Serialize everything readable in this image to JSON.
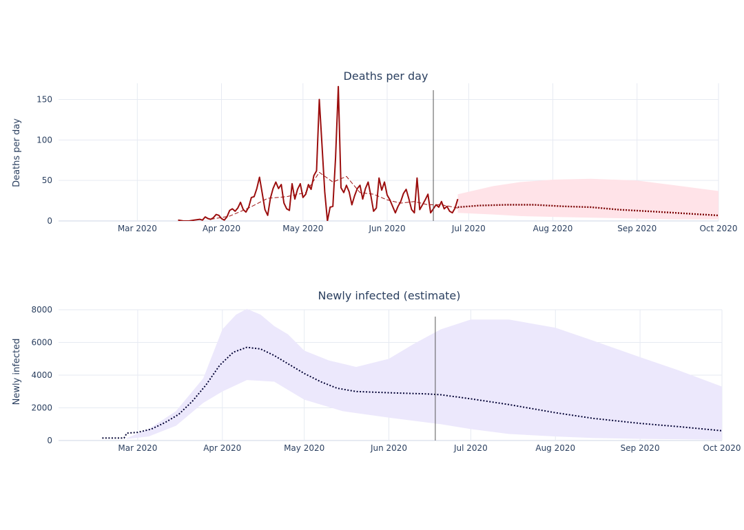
{
  "chart_data": [
    {
      "type": "line",
      "title": "Deaths per day",
      "ylabel": "Deaths per day",
      "xlabel": "",
      "x_range": [
        "2020-02-01",
        "2020-10-01"
      ],
      "ylim": [
        0,
        170
      ],
      "x_ticks": [
        {
          "date": "2020-03-01",
          "label": "Mar 2020"
        },
        {
          "date": "2020-04-01",
          "label": "Apr 2020"
        },
        {
          "date": "2020-05-01",
          "label": "May 2020"
        },
        {
          "date": "2020-06-01",
          "label": "Jun 2020"
        },
        {
          "date": "2020-07-01",
          "label": "Jul 2020"
        },
        {
          "date": "2020-08-01",
          "label": "Aug 2020"
        },
        {
          "date": "2020-09-01",
          "label": "Sep 2020"
        },
        {
          "date": "2020-10-01",
          "label": "Oct 2020"
        }
      ],
      "y_ticks": [
        0,
        50,
        100,
        150
      ],
      "grid": true,
      "today_marker": "2020-06-18",
      "colors": {
        "observed": "#9b0d0d",
        "smoothed": "#9b0d0d",
        "forecast": "#7a0000",
        "band": "#ffe3e8"
      },
      "series": [
        {
          "style": "observed",
          "points": [
            [
              "2020-03-16",
              1
            ],
            [
              "2020-03-18",
              0
            ],
            [
              "2020-03-20",
              0
            ],
            [
              "2020-03-22",
              1
            ],
            [
              "2020-03-24",
              2
            ],
            [
              "2020-03-25",
              1
            ],
            [
              "2020-03-26",
              5
            ],
            [
              "2020-03-27",
              3
            ],
            [
              "2020-03-28",
              2
            ],
            [
              "2020-03-29",
              4
            ],
            [
              "2020-03-30",
              8
            ],
            [
              "2020-03-31",
              7
            ],
            [
              "2020-04-01",
              3
            ],
            [
              "2020-04-02",
              1
            ],
            [
              "2020-04-03",
              5
            ],
            [
              "2020-04-04",
              13
            ],
            [
              "2020-04-05",
              15
            ],
            [
              "2020-04-06",
              12
            ],
            [
              "2020-04-07",
              16
            ],
            [
              "2020-04-08",
              23
            ],
            [
              "2020-04-09",
              14
            ],
            [
              "2020-04-10",
              11
            ],
            [
              "2020-04-11",
              17
            ],
            [
              "2020-04-12",
              29
            ],
            [
              "2020-04-13",
              30
            ],
            [
              "2020-04-14",
              40
            ],
            [
              "2020-04-15",
              54
            ],
            [
              "2020-04-16",
              34
            ],
            [
              "2020-04-17",
              14
            ],
            [
              "2020-04-18",
              7
            ],
            [
              "2020-04-19",
              28
            ],
            [
              "2020-04-20",
              40
            ],
            [
              "2020-04-21",
              48
            ],
            [
              "2020-04-22",
              40
            ],
            [
              "2020-04-23",
              45
            ],
            [
              "2020-04-24",
              22
            ],
            [
              "2020-04-25",
              15
            ],
            [
              "2020-04-26",
              13
            ],
            [
              "2020-04-27",
              46
            ],
            [
              "2020-04-28",
              27
            ],
            [
              "2020-04-29",
              39
            ],
            [
              "2020-04-30",
              46
            ],
            [
              "2020-05-01",
              29
            ],
            [
              "2020-05-02",
              33
            ],
            [
              "2020-05-03",
              45
            ],
            [
              "2020-05-04",
              39
            ],
            [
              "2020-05-05",
              56
            ],
            [
              "2020-05-06",
              62
            ],
            [
              "2020-05-07",
              150
            ],
            [
              "2020-05-08",
              94
            ],
            [
              "2020-05-09",
              36
            ],
            [
              "2020-05-10",
              0
            ],
            [
              "2020-05-11",
              17
            ],
            [
              "2020-05-12",
              18
            ],
            [
              "2020-05-13",
              78
            ],
            [
              "2020-05-14",
              166
            ],
            [
              "2020-05-15",
              41
            ],
            [
              "2020-05-16",
              35
            ],
            [
              "2020-05-17",
              44
            ],
            [
              "2020-05-18",
              36
            ],
            [
              "2020-05-19",
              20
            ],
            [
              "2020-05-20",
              31
            ],
            [
              "2020-05-21",
              40
            ],
            [
              "2020-05-22",
              44
            ],
            [
              "2020-05-23",
              27
            ],
            [
              "2020-05-24",
              40
            ],
            [
              "2020-05-25",
              48
            ],
            [
              "2020-05-26",
              31
            ],
            [
              "2020-05-27",
              12
            ],
            [
              "2020-05-28",
              16
            ],
            [
              "2020-05-29",
              53
            ],
            [
              "2020-05-30",
              38
            ],
            [
              "2020-05-31",
              48
            ],
            [
              "2020-06-01",
              32
            ],
            [
              "2020-06-02",
              26
            ],
            [
              "2020-06-03",
              18
            ],
            [
              "2020-06-04",
              10
            ],
            [
              "2020-06-05",
              18
            ],
            [
              "2020-06-06",
              24
            ],
            [
              "2020-06-07",
              34
            ],
            [
              "2020-06-08",
              39
            ],
            [
              "2020-06-09",
              27
            ],
            [
              "2020-06-10",
              14
            ],
            [
              "2020-06-11",
              10
            ],
            [
              "2020-06-12",
              53
            ],
            [
              "2020-06-13",
              14
            ],
            [
              "2020-06-14",
              20
            ],
            [
              "2020-06-15",
              26
            ],
            [
              "2020-06-16",
              33
            ],
            [
              "2020-06-17",
              10
            ],
            [
              "2020-06-18",
              15
            ],
            [
              "2020-06-19",
              20
            ],
            [
              "2020-06-20",
              17
            ],
            [
              "2020-06-21",
              24
            ],
            [
              "2020-06-22",
              15
            ],
            [
              "2020-06-23",
              18
            ],
            [
              "2020-06-24",
              12
            ],
            [
              "2020-06-25",
              10
            ],
            [
              "2020-06-26",
              16
            ],
            [
              "2020-06-27",
              27
            ]
          ]
        },
        {
          "style": "smoothed",
          "points": [
            [
              "2020-03-28",
              2
            ],
            [
              "2020-04-04",
              6
            ],
            [
              "2020-04-11",
              16
            ],
            [
              "2020-04-18",
              28
            ],
            [
              "2020-04-25",
              30
            ],
            [
              "2020-05-02",
              35
            ],
            [
              "2020-05-07",
              60
            ],
            [
              "2020-05-12",
              48
            ],
            [
              "2020-05-17",
              55
            ],
            [
              "2020-05-22",
              35
            ],
            [
              "2020-05-27",
              33
            ],
            [
              "2020-06-01",
              26
            ],
            [
              "2020-06-06",
              22
            ],
            [
              "2020-06-11",
              24
            ],
            [
              "2020-06-16",
              20
            ],
            [
              "2020-06-21",
              20
            ],
            [
              "2020-06-27",
              16
            ]
          ]
        },
        {
          "style": "forecast",
          "points": [
            [
              "2020-06-27",
              17
            ],
            [
              "2020-07-05",
              19
            ],
            [
              "2020-07-15",
              20
            ],
            [
              "2020-07-25",
              20
            ],
            [
              "2020-08-05",
              18
            ],
            [
              "2020-08-15",
              17
            ],
            [
              "2020-08-25",
              14
            ],
            [
              "2020-09-05",
              12
            ],
            [
              "2020-09-15",
              10
            ],
            [
              "2020-09-25",
              8
            ],
            [
              "2020-10-05",
              6
            ],
            [
              "2020-10-15",
              6
            ]
          ]
        }
      ],
      "band": {
        "upper": [
          [
            "2020-06-27",
            33
          ],
          [
            "2020-07-10",
            43
          ],
          [
            "2020-07-20",
            48
          ],
          [
            "2020-08-01",
            51
          ],
          [
            "2020-08-15",
            52
          ],
          [
            "2020-09-01",
            50
          ],
          [
            "2020-09-15",
            44
          ],
          [
            "2020-10-01",
            37
          ],
          [
            "2020-10-15",
            29
          ]
        ],
        "lower": [
          [
            "2020-06-27",
            10
          ],
          [
            "2020-07-10",
            8
          ],
          [
            "2020-07-20",
            6
          ],
          [
            "2020-08-01",
            5
          ],
          [
            "2020-08-15",
            4
          ],
          [
            "2020-09-01",
            3
          ],
          [
            "2020-09-15",
            2
          ],
          [
            "2020-10-01",
            2
          ],
          [
            "2020-10-15",
            1
          ]
        ]
      }
    },
    {
      "type": "line",
      "title": "Newly infected (estimate)",
      "ylabel": "Newly infected",
      "xlabel": "",
      "x_range": [
        "2020-02-01",
        "2020-10-01"
      ],
      "ylim": [
        0,
        8000
      ],
      "x_ticks": [
        {
          "date": "2020-03-01",
          "label": "Mar 2020"
        },
        {
          "date": "2020-04-01",
          "label": "Apr 2020"
        },
        {
          "date": "2020-05-01",
          "label": "May 2020"
        },
        {
          "date": "2020-06-01",
          "label": "Jun 2020"
        },
        {
          "date": "2020-07-01",
          "label": "Jul 2020"
        },
        {
          "date": "2020-08-01",
          "label": "Aug 2020"
        },
        {
          "date": "2020-09-01",
          "label": "Sep 2020"
        },
        {
          "date": "2020-10-01",
          "label": "Oct 2020"
        }
      ],
      "y_ticks": [
        0,
        2000,
        4000,
        6000,
        8000
      ],
      "grid": true,
      "today_marker": "2020-06-18",
      "colors": {
        "estimate": "#000033",
        "band": "#ece8fc"
      },
      "series": [
        {
          "style": "estimate",
          "points": [
            [
              "2020-02-17",
              150
            ],
            [
              "2020-02-25",
              150
            ],
            [
              "2020-02-26",
              450
            ],
            [
              "2020-03-01",
              500
            ],
            [
              "2020-03-06",
              700
            ],
            [
              "2020-03-11",
              1100
            ],
            [
              "2020-03-16",
              1600
            ],
            [
              "2020-03-21",
              2400
            ],
            [
              "2020-03-26",
              3400
            ],
            [
              "2020-03-31",
              4600
            ],
            [
              "2020-04-05",
              5400
            ],
            [
              "2020-04-10",
              5700
            ],
            [
              "2020-04-15",
              5600
            ],
            [
              "2020-04-20",
              5200
            ],
            [
              "2020-04-25",
              4700
            ],
            [
              "2020-05-01",
              4100
            ],
            [
              "2020-05-07",
              3600
            ],
            [
              "2020-05-13",
              3200
            ],
            [
              "2020-05-20",
              3000
            ],
            [
              "2020-06-01",
              2920
            ],
            [
              "2020-06-15",
              2850
            ],
            [
              "2020-06-20",
              2800
            ],
            [
              "2020-07-01",
              2550
            ],
            [
              "2020-07-15",
              2200
            ],
            [
              "2020-08-01",
              1700
            ],
            [
              "2020-08-15",
              1350
            ],
            [
              "2020-09-01",
              1050
            ],
            [
              "2020-09-15",
              850
            ],
            [
              "2020-10-01",
              600
            ],
            [
              "2020-10-15",
              500
            ]
          ]
        }
      ],
      "band": {
        "upper": [
          [
            "2020-02-26",
            150
          ],
          [
            "2020-03-05",
            700
          ],
          [
            "2020-03-15",
            1800
          ],
          [
            "2020-03-25",
            3800
          ],
          [
            "2020-04-01",
            6800
          ],
          [
            "2020-04-06",
            7700
          ],
          [
            "2020-04-10",
            8050
          ],
          [
            "2020-04-15",
            7700
          ],
          [
            "2020-04-20",
            7000
          ],
          [
            "2020-04-25",
            6500
          ],
          [
            "2020-05-01",
            5500
          ],
          [
            "2020-05-10",
            4900
          ],
          [
            "2020-05-20",
            4500
          ],
          [
            "2020-06-01",
            5000
          ],
          [
            "2020-06-10",
            5900
          ],
          [
            "2020-06-20",
            6800
          ],
          [
            "2020-07-01",
            7400
          ],
          [
            "2020-07-15",
            7400
          ],
          [
            "2020-08-01",
            6900
          ],
          [
            "2020-08-15",
            6100
          ],
          [
            "2020-09-01",
            5100
          ],
          [
            "2020-09-15",
            4300
          ],
          [
            "2020-10-01",
            3300
          ],
          [
            "2020-10-15",
            2600
          ]
        ],
        "lower": [
          [
            "2020-02-26",
            100
          ],
          [
            "2020-03-05",
            250
          ],
          [
            "2020-03-15",
            900
          ],
          [
            "2020-03-25",
            2300
          ],
          [
            "2020-04-01",
            3000
          ],
          [
            "2020-04-10",
            3700
          ],
          [
            "2020-04-20",
            3600
          ],
          [
            "2020-05-01",
            2500
          ],
          [
            "2020-05-15",
            1800
          ],
          [
            "2020-06-01",
            1400
          ],
          [
            "2020-06-20",
            1000
          ],
          [
            "2020-07-01",
            700
          ],
          [
            "2020-07-15",
            400
          ],
          [
            "2020-08-01",
            250
          ],
          [
            "2020-08-15",
            150
          ],
          [
            "2020-09-01",
            100
          ],
          [
            "2020-09-15",
            80
          ],
          [
            "2020-10-01",
            50
          ],
          [
            "2020-10-15",
            40
          ]
        ]
      }
    }
  ]
}
